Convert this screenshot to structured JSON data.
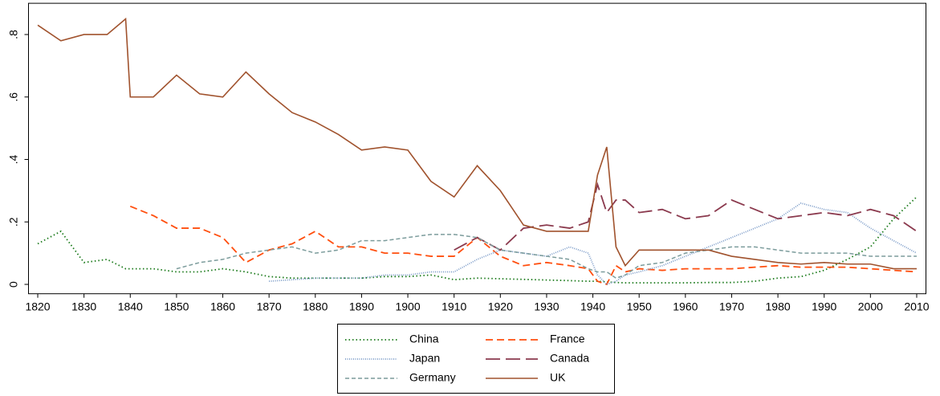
{
  "chart_data": {
    "type": "line",
    "x": [
      1820,
      1825,
      1830,
      1835,
      1839,
      1840,
      1845,
      1850,
      1855,
      1860,
      1865,
      1870,
      1875,
      1880,
      1885,
      1890,
      1895,
      1900,
      1905,
      1910,
      1915,
      1920,
      1925,
      1930,
      1935,
      1939,
      1941,
      1943,
      1945,
      1947,
      1950,
      1955,
      1960,
      1965,
      1970,
      1975,
      1980,
      1985,
      1990,
      1995,
      2000,
      2005,
      2010
    ],
    "series": [
      {
        "name": "China",
        "color": "#1a7a1a",
        "values": [
          0.13,
          0.17,
          0.07,
          0.08,
          0.05,
          0.05,
          0.05,
          0.04,
          0.04,
          0.05,
          0.04,
          0.025,
          0.02,
          0.02,
          0.02,
          0.02,
          0.025,
          0.025,
          0.03,
          0.015,
          0.02,
          0.018,
          0.016,
          0.014,
          0.012,
          0.01,
          0.01,
          0.008,
          0.006,
          0.005,
          0.005,
          0.005,
          0.005,
          0.006,
          0.006,
          0.01,
          0.02,
          0.025,
          0.045,
          0.08,
          0.12,
          0.21,
          0.28
        ]
      },
      {
        "name": "France",
        "color": "#ff4f0f",
        "values": [
          null,
          null,
          null,
          null,
          null,
          0.25,
          0.22,
          0.18,
          0.18,
          0.15,
          0.07,
          0.11,
          0.13,
          0.17,
          0.12,
          0.12,
          0.1,
          0.1,
          0.09,
          0.09,
          0.15,
          0.09,
          0.06,
          0.07,
          0.06,
          0.05,
          0.01,
          0.0,
          0.06,
          0.04,
          0.05,
          0.045,
          0.05,
          0.05,
          0.05,
          0.055,
          0.06,
          0.055,
          0.055,
          0.055,
          0.05,
          0.045,
          0.04
        ]
      },
      {
        "name": "Japan",
        "color": "#7b9bc8",
        "values": [
          null,
          null,
          null,
          null,
          null,
          null,
          null,
          null,
          null,
          null,
          null,
          0.01,
          0.015,
          0.02,
          0.02,
          0.02,
          0.03,
          0.03,
          0.04,
          0.04,
          0.08,
          0.11,
          0.1,
          0.09,
          0.12,
          0.1,
          0.03,
          0.0,
          0.01,
          0.03,
          0.04,
          0.06,
          0.09,
          0.12,
          0.15,
          0.18,
          0.21,
          0.26,
          0.24,
          0.23,
          0.18,
          0.14,
          0.1
        ]
      },
      {
        "name": "Canada",
        "color": "#8b3a4e",
        "values": [
          null,
          null,
          null,
          null,
          null,
          null,
          null,
          null,
          null,
          null,
          null,
          null,
          null,
          null,
          null,
          null,
          null,
          null,
          null,
          0.11,
          0.15,
          0.11,
          0.18,
          0.19,
          0.18,
          0.2,
          0.32,
          0.23,
          0.27,
          0.27,
          0.23,
          0.24,
          0.21,
          0.22,
          0.27,
          0.24,
          0.21,
          0.22,
          0.23,
          0.22,
          0.24,
          0.22,
          0.17
        ]
      },
      {
        "name": "Germany",
        "color": "#7c9c9c",
        "values": [
          null,
          null,
          null,
          null,
          null,
          null,
          null,
          0.05,
          0.07,
          0.08,
          0.1,
          0.11,
          0.12,
          0.1,
          0.11,
          0.14,
          0.14,
          0.15,
          0.16,
          0.16,
          0.15,
          0.11,
          0.1,
          0.09,
          0.08,
          0.05,
          0.04,
          0.04,
          0.02,
          0.03,
          0.06,
          0.07,
          0.1,
          0.11,
          0.12,
          0.12,
          0.11,
          0.1,
          0.1,
          0.1,
          0.09,
          0.09,
          0.09
        ]
      },
      {
        "name": "UK",
        "color": "#a0522d",
        "values": [
          0.83,
          0.78,
          0.8,
          0.8,
          0.85,
          0.6,
          0.6,
          0.67,
          0.61,
          0.6,
          0.68,
          0.61,
          0.55,
          0.52,
          0.48,
          0.43,
          0.44,
          0.43,
          0.33,
          0.28,
          0.38,
          0.3,
          0.19,
          0.17,
          0.17,
          0.17,
          0.35,
          0.44,
          0.12,
          0.06,
          0.11,
          0.11,
          0.11,
          0.11,
          0.09,
          0.08,
          0.07,
          0.065,
          0.07,
          0.065,
          0.065,
          0.05,
          0.05
        ]
      }
    ],
    "xlim": [
      1818,
      2012
    ],
    "xticks": [
      1820,
      1830,
      1840,
      1850,
      1860,
      1870,
      1880,
      1890,
      1900,
      1910,
      1920,
      1930,
      1940,
      1950,
      1960,
      1970,
      1980,
      1990,
      2000,
      2010
    ],
    "ylim": [
      -0.03,
      0.9
    ],
    "yticks": [
      0,
      {
        "value": 0.2,
        "label": ".2"
      },
      {
        "value": 0.4,
        "label": ".4"
      },
      {
        "value": 0.6,
        "label": ".6"
      },
      {
        "value": 0.8,
        "label": ".8"
      }
    ]
  }
}
